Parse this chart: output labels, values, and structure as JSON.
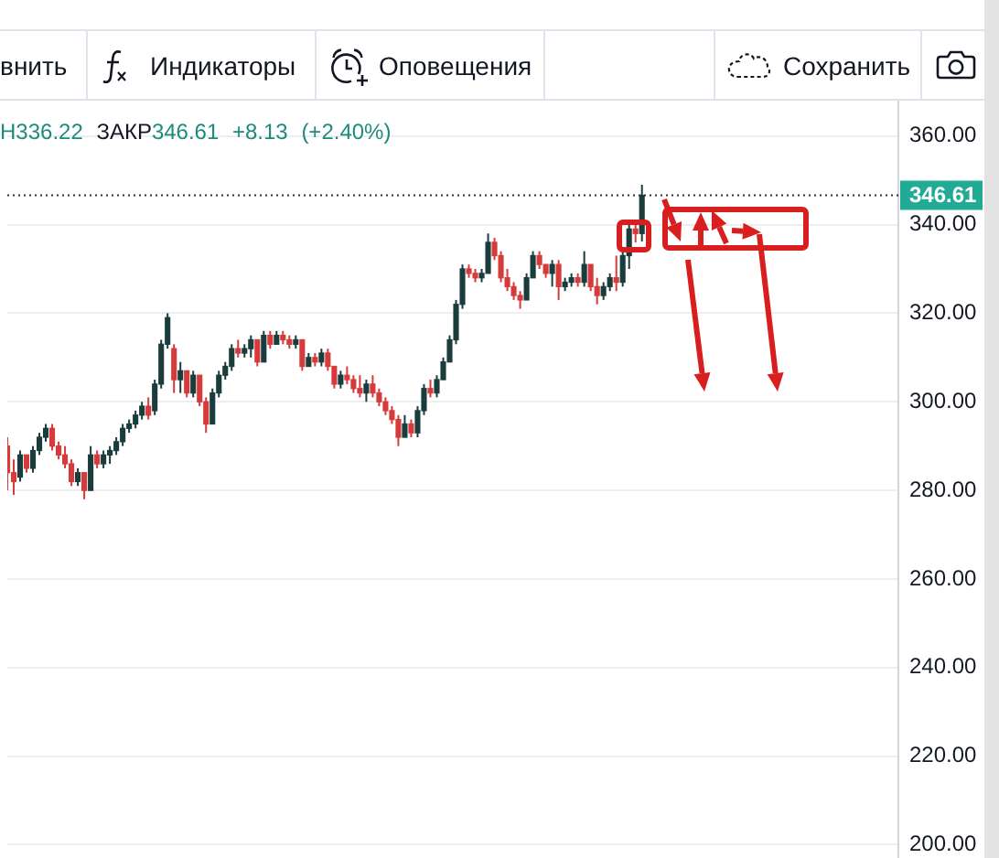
{
  "chart_data": {
    "type": "candlestick",
    "subtitle": "Н336.22 ЗАКР346.61 +8.13 (+2.40%)",
    "annotations": [
      "внить",
      "Индикаторы",
      "Оповещения",
      "Сохранить"
    ],
    "categories": [
      null,
      null,
      null,
      null,
      null,
      null,
      null,
      null,
      null,
      null,
      null,
      null,
      null,
      null,
      null,
      null,
      null,
      null,
      null,
      null,
      null,
      null,
      null,
      null,
      null,
      null,
      null,
      null,
      null,
      null,
      null,
      null,
      null,
      null,
      null,
      null,
      null,
      null,
      null,
      null,
      null,
      null,
      null,
      null,
      null,
      null,
      null,
      null,
      null,
      null,
      null,
      null,
      null,
      null,
      null,
      null,
      null,
      null,
      null,
      null,
      null,
      null,
      null,
      null,
      null,
      null,
      null,
      null,
      null,
      null,
      null,
      null,
      null,
      null,
      null,
      null,
      null,
      null,
      null,
      null,
      null,
      null,
      null,
      null,
      null,
      null,
      null,
      null,
      null,
      null,
      null,
      null,
      null,
      null,
      null,
      null,
      null,
      null,
      null,
      null,
      null,
      null,
      null,
      null,
      null,
      null,
      null,
      null,
      null,
      null,
      null,
      null,
      null,
      null,
      null,
      null,
      null,
      null,
      null,
      null,
      null,
      null,
      null,
      null,
      null,
      null,
      null,
      null,
      null,
      null,
      null,
      null,
      null,
      null,
      null,
      null,
      null,
      null,
      null,
      null
    ],
    "ohlc": [
      [
        290,
        292,
        280,
        284
      ],
      [
        284,
        287,
        279,
        282
      ],
      [
        283,
        289,
        282,
        288
      ],
      [
        288,
        288,
        284,
        285
      ],
      [
        285,
        290,
        284,
        289
      ],
      [
        289,
        293,
        288,
        292
      ],
      [
        292,
        295,
        291,
        294
      ],
      [
        294,
        295,
        289,
        290
      ],
      [
        290,
        291,
        287,
        288
      ],
      [
        288,
        290,
        285,
        286
      ],
      [
        286,
        287,
        281,
        282
      ],
      [
        282,
        285,
        281,
        284
      ],
      [
        284,
        284,
        278,
        280
      ],
      [
        280,
        290,
        280,
        288
      ],
      [
        288,
        289,
        285,
        286
      ],
      [
        286,
        289,
        285,
        288
      ],
      [
        288,
        290,
        286,
        289
      ],
      [
        289,
        292,
        288,
        291
      ],
      [
        291,
        295,
        290,
        294
      ],
      [
        294,
        296,
        293,
        295
      ],
      [
        295,
        298,
        294,
        297
      ],
      [
        297,
        300,
        296,
        299
      ],
      [
        299,
        301,
        296,
        297
      ],
      [
        298,
        305,
        297,
        304
      ],
      [
        304,
        314,
        303,
        313
      ],
      [
        313,
        320,
        312,
        319
      ],
      [
        312,
        313,
        302,
        305
      ],
      [
        305,
        309,
        302,
        307
      ],
      [
        307,
        307,
        301,
        302
      ],
      [
        302,
        307,
        301,
        306
      ],
      [
        306,
        306,
        299,
        300
      ],
      [
        300,
        301,
        293,
        295
      ],
      [
        295,
        303,
        295,
        302
      ],
      [
        302,
        307,
        301,
        306
      ],
      [
        306,
        309,
        305,
        308
      ],
      [
        308,
        313,
        307,
        312
      ],
      [
        312,
        314,
        310,
        311
      ],
      [
        311,
        313,
        310,
        312
      ],
      [
        312,
        315,
        310,
        314
      ],
      [
        314,
        314,
        308,
        309
      ],
      [
        309,
        316,
        309,
        315
      ],
      [
        315,
        316,
        312,
        313
      ],
      [
        313,
        316,
        313,
        315
      ],
      [
        315,
        316,
        313,
        314
      ],
      [
        314,
        315,
        312,
        313
      ],
      [
        313,
        315,
        312,
        314
      ],
      [
        314,
        314,
        307,
        308
      ],
      [
        308,
        311,
        308,
        310
      ],
      [
        310,
        311,
        308,
        309
      ],
      [
        309,
        312,
        308,
        311
      ],
      [
        311,
        312,
        307,
        308
      ],
      [
        308,
        308,
        303,
        304
      ],
      [
        304,
        307,
        303,
        306
      ],
      [
        306,
        308,
        304,
        305
      ],
      [
        305,
        306,
        302,
        303
      ],
      [
        303,
        306,
        301,
        302
      ],
      [
        302,
        305,
        300,
        304
      ],
      [
        304,
        306,
        301,
        302
      ],
      [
        302,
        303,
        299,
        300
      ],
      [
        300,
        301,
        297,
        298
      ],
      [
        298,
        299,
        295,
        296
      ],
      [
        296,
        297,
        290,
        292
      ],
      [
        292,
        297,
        292,
        295
      ],
      [
        295,
        296,
        292,
        293
      ],
      [
        293,
        299,
        292,
        298
      ],
      [
        298,
        304,
        297,
        303
      ],
      [
        303,
        305,
        301,
        302
      ],
      [
        302,
        306,
        301,
        305
      ],
      [
        305,
        310,
        305,
        309
      ],
      [
        309,
        315,
        309,
        314
      ],
      [
        314,
        323,
        313,
        322
      ],
      [
        322,
        331,
        321,
        330
      ],
      [
        330,
        331,
        328,
        329
      ],
      [
        329,
        330,
        327,
        328
      ],
      [
        328,
        330,
        327,
        329
      ],
      [
        329,
        338,
        329,
        336
      ],
      [
        336,
        337,
        332,
        333
      ],
      [
        333,
        334,
        327,
        328
      ],
      [
        328,
        330,
        325,
        326
      ],
      [
        326,
        327,
        323,
        324
      ],
      [
        324,
        325,
        321,
        323
      ],
      [
        323,
        329,
        323,
        328
      ],
      [
        328,
        334,
        328,
        333
      ],
      [
        333,
        334,
        330,
        331
      ],
      [
        331,
        331,
        328,
        329
      ],
      [
        329,
        332,
        326,
        331
      ],
      [
        331,
        332,
        323,
        326
      ],
      [
        326,
        328,
        325,
        327
      ],
      [
        327,
        329,
        326,
        328
      ],
      [
        328,
        329,
        326,
        327
      ],
      [
        327,
        334,
        326,
        331
      ],
      [
        331,
        331,
        325,
        326
      ],
      [
        326,
        328,
        322,
        324
      ],
      [
        324,
        327,
        323,
        326
      ],
      [
        326,
        329,
        325,
        328
      ],
      [
        328,
        333,
        325,
        327
      ],
      [
        327,
        334,
        326,
        333
      ],
      [
        333,
        341,
        330,
        339
      ],
      [
        339,
        340,
        336,
        338
      ],
      [
        338,
        349,
        336.22,
        346.61
      ],
      null,
      null,
      null,
      null,
      null,
      null,
      null,
      null,
      null,
      null,
      null,
      null,
      null,
      null,
      null,
      null,
      null,
      null,
      null,
      null,
      null,
      null,
      null,
      null,
      null,
      null,
      null,
      null,
      null,
      null,
      null,
      null,
      null,
      null,
      null,
      null,
      null,
      null,
      null,
      null
    ],
    "colors": [
      "#d63a3a",
      "#d63a3a",
      "#1a3c3c",
      "#d63a3a",
      "#1a3c3c",
      "#1a3c3c",
      "#1a3c3c",
      "#d63a3a",
      "#d63a3a",
      "#d63a3a",
      "#d63a3a",
      "#1a3c3c",
      "#d63a3a",
      "#1a3c3c",
      "#d63a3a",
      "#1a3c3c",
      "#1a3c3c",
      "#1a3c3c",
      "#1a3c3c",
      "#1a3c3c",
      "#1a3c3c",
      "#1a3c3c",
      "#d63a3a",
      "#1a3c3c",
      "#1a3c3c",
      "#1a3c3c",
      "#d63a3a",
      "#1a3c3c",
      "#d63a3a",
      "#1a3c3c",
      "#d63a3a",
      "#d63a3a",
      "#1a3c3c",
      "#1a3c3c",
      "#1a3c3c",
      "#1a3c3c",
      "#d63a3a",
      "#1a3c3c",
      "#1a3c3c",
      "#d63a3a",
      "#1a3c3c",
      "#d63a3a",
      "#1a3c3c",
      "#d63a3a",
      "#d63a3a",
      "#1a3c3c",
      "#d63a3a",
      "#1a3c3c",
      "#d63a3a",
      "#1a3c3c",
      "#d63a3a",
      "#d63a3a",
      "#1a3c3c",
      "#d63a3a",
      "#d63a3a",
      "#d63a3a",
      "#1a3c3c",
      "#d63a3a",
      "#d63a3a",
      "#d63a3a",
      "#d63a3a",
      "#d63a3a",
      "#1a3c3c",
      "#d63a3a",
      "#1a3c3c",
      "#1a3c3c",
      "#d63a3a",
      "#1a3c3c",
      "#1a3c3c",
      "#1a3c3c",
      "#1a3c3c",
      "#1a3c3c",
      "#d63a3a",
      "#d63a3a",
      "#1a3c3c",
      "#1a3c3c",
      "#d63a3a",
      "#d63a3a",
      "#d63a3a",
      "#d63a3a",
      "#d63a3a",
      "#1a3c3c",
      "#1a3c3c",
      "#d63a3a",
      "#d63a3a",
      "#1a3c3c",
      "#d63a3a",
      "#1a3c3c",
      "#1a3c3c",
      "#d63a3a",
      "#1a3c3c",
      "#d63a3a",
      "#d63a3a",
      "#1a3c3c",
      "#1a3c3c",
      "#d63a3a",
      "#1a3c3c",
      "#1a3c3c",
      "#d63a3a",
      "#1a3c3c",
      null,
      null,
      null,
      null,
      null,
      null,
      null,
      null,
      null,
      null,
      null,
      null,
      null,
      null,
      null,
      null,
      null,
      null,
      null,
      null,
      null,
      null,
      null,
      null,
      null,
      null,
      null,
      null,
      null,
      null,
      null,
      null,
      null,
      null,
      null,
      null,
      null,
      null,
      null,
      null
    ],
    "ylim": [
      197,
      368
    ],
    "yticks": [
      {
        "value": 200,
        "label": "200.00"
      },
      {
        "value": 220,
        "label": "220.00"
      },
      {
        "value": 240,
        "label": "240.00"
      },
      {
        "value": 260,
        "label": "260.00"
      },
      {
        "value": 280,
        "label": "280.00"
      },
      {
        "value": 300,
        "label": "300.00"
      },
      {
        "value": 320,
        "label": "320.00"
      },
      {
        "value": 340,
        "label": "340.00"
      },
      {
        "value": 360,
        "label": "360.00"
      }
    ],
    "grid": "y",
    "tick_labels": "y",
    "ref_lines": [
      {
        "axis": "y",
        "value": 346.61,
        "label": "346.61",
        "color": "#2a2e39",
        "line_style": "dotted"
      }
    ]
  }
}
